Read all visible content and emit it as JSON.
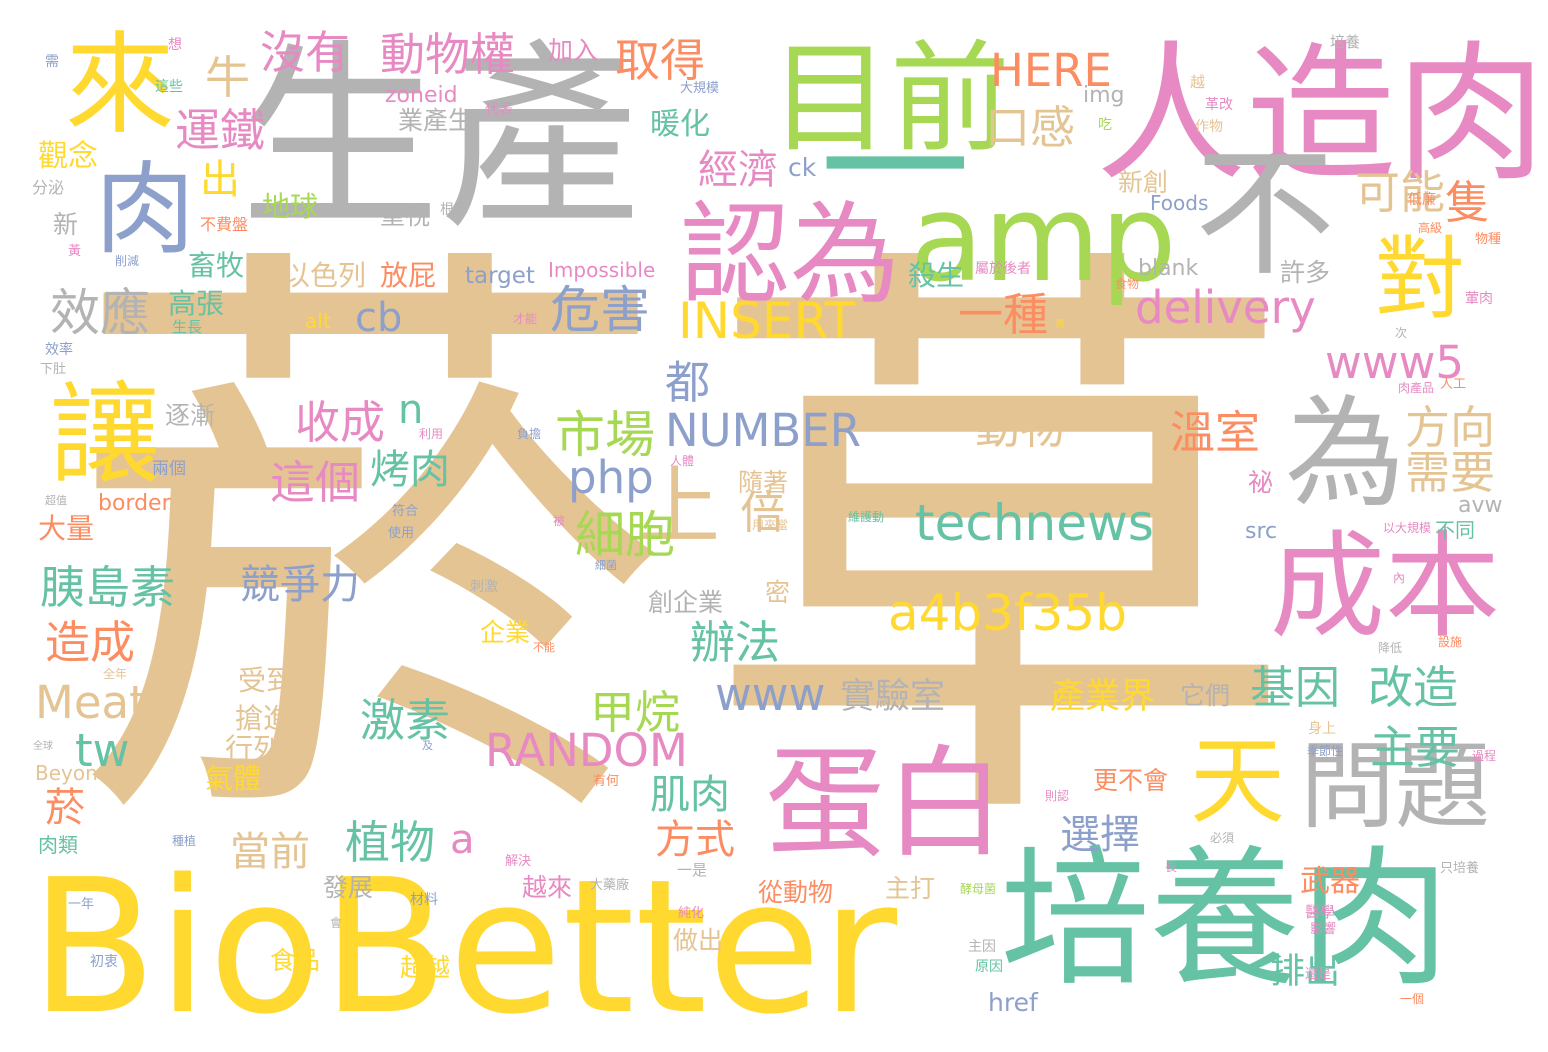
{
  "words": [
    {
      "text": "菸",
      "color": "#e5c494"
    },
    {
      "text": "草",
      "color": "#e5c494"
    },
    {
      "text": "生產",
      "color": "#b3b3b3"
    },
    {
      "text": "人造肉",
      "color": "#e78ac3"
    },
    {
      "text": "BioBetter",
      "color": "#ffd92f"
    },
    {
      "text": "培養肉",
      "color": "#66c2a5"
    },
    {
      "text": "一",
      "color": "#66c2a5"
    },
    {
      "text": "目前",
      "color": "#a6d854"
    },
    {
      "text": "amp",
      "color": "#a6d854"
    },
    {
      "text": "認為",
      "color": "#e78ac3"
    },
    {
      "text": "來",
      "color": "#ffd92f"
    },
    {
      "text": "肉",
      "color": "#8da0cb"
    },
    {
      "text": "不",
      "color": "#b3b3b3"
    },
    {
      "text": "為",
      "color": "#b3b3b3"
    },
    {
      "text": "成本",
      "color": "#e78ac3"
    },
    {
      "text": "蛋白",
      "color": "#e78ac3"
    },
    {
      "text": "讓",
      "color": "#ffd92f"
    },
    {
      "text": "對",
      "color": "#ffd92f"
    },
    {
      "text": "天",
      "color": "#ffd92f"
    },
    {
      "text": "問題",
      "color": "#b3b3b3"
    },
    {
      "text": "上",
      "color": "#e5c494"
    },
    {
      "text": "technews",
      "color": "#66c2a5"
    },
    {
      "text": "a4b3f35b",
      "color": "#ffd92f"
    },
    {
      "text": "delivery",
      "color": "#e78ac3"
    },
    {
      "text": "INSERT",
      "color": "#ffd92f"
    },
    {
      "text": "NUMBER",
      "color": "#8da0cb"
    },
    {
      "text": "RANDOM",
      "color": "#e78ac3"
    },
    {
      "text": "www5",
      "color": "#e78ac3"
    },
    {
      "text": "www",
      "color": "#8da0cb"
    },
    {
      "text": "php",
      "color": "#8da0cb"
    },
    {
      "text": "cb",
      "color": "#8da0cb"
    },
    {
      "text": "HERE",
      "color": "#fc8d62"
    },
    {
      "text": "Meat",
      "color": "#e5c494"
    },
    {
      "text": "tw",
      "color": "#66c2a5"
    },
    {
      "text": "效應",
      "color": "#b3b3b3"
    },
    {
      "text": "危害",
      "color": "#8da0cb"
    },
    {
      "text": "市場",
      "color": "#a6d854"
    },
    {
      "text": "細胞",
      "color": "#a6d854"
    },
    {
      "text": "倍",
      "color": "#e5c494"
    },
    {
      "text": "動物權",
      "color": "#e78ac3"
    },
    {
      "text": "沒有",
      "color": "#e78ac3"
    },
    {
      "text": "取得",
      "color": "#fc8d62"
    },
    {
      "text": "運鐵",
      "color": "#e78ac3"
    },
    {
      "text": "出",
      "color": "#ffd92f"
    },
    {
      "text": "牛",
      "color": "#e5c494"
    },
    {
      "text": "口感",
      "color": "#e5c494"
    },
    {
      "text": "可能",
      "color": "#e5c494"
    },
    {
      "text": "隻",
      "color": "#fc8d62"
    },
    {
      "text": "經濟",
      "color": "#e78ac3"
    },
    {
      "text": "暖化",
      "color": "#66c2a5"
    },
    {
      "text": "一種",
      "color": "#fc8d62"
    },
    {
      "text": "動物",
      "color": "#e5c494"
    },
    {
      "text": "溫室",
      "color": "#fc8d62"
    },
    {
      "text": "方向",
      "color": "#e5c494"
    },
    {
      "text": "需要",
      "color": "#e5c494"
    },
    {
      "text": "收成",
      "color": "#e78ac3"
    },
    {
      "text": "這個",
      "color": "#e78ac3"
    },
    {
      "text": "烤肉",
      "color": "#66c2a5"
    },
    {
      "text": "都",
      "color": "#8da0cb"
    },
    {
      "text": "n",
      "color": "#66c2a5"
    },
    {
      "text": "胰島素",
      "color": "#66c2a5"
    },
    {
      "text": "競爭力",
      "color": "#8da0cb"
    },
    {
      "text": "造成",
      "color": "#fc8d62"
    },
    {
      "text": "辦法",
      "color": "#66c2a5"
    },
    {
      "text": "激素",
      "color": "#66c2a5"
    },
    {
      "text": "甲烷",
      "color": "#a6d854"
    },
    {
      "text": "基因",
      "color": "#66c2a5"
    },
    {
      "text": "改造",
      "color": "#66c2a5"
    },
    {
      "text": "主要",
      "color": "#66c2a5"
    },
    {
      "text": "產業界",
      "color": "#ffd92f"
    },
    {
      "text": "實驗室",
      "color": "#b3b3b3"
    },
    {
      "text": "肌肉",
      "color": "#66c2a5"
    },
    {
      "text": "植物",
      "color": "#66c2a5"
    },
    {
      "text": "選擇",
      "color": "#8da0cb"
    },
    {
      "text": "方式",
      "color": "#fc8d62"
    },
    {
      "text": "當前",
      "color": "#e5c494"
    },
    {
      "text": "a",
      "color": "#e78ac3"
    },
    {
      "text": "菸",
      "color": "#fc8d62"
    },
    {
      "text": "排出",
      "color": "#66c2a5"
    },
    {
      "text": "武器",
      "color": "#fc8d62"
    },
    {
      "text": "觀念",
      "color": "#ffd92f"
    },
    {
      "text": "畜牧",
      "color": "#66c2a5"
    },
    {
      "text": "高張",
      "color": "#66c2a5"
    },
    {
      "text": "地球",
      "color": "#a6d854"
    },
    {
      "text": "重視",
      "color": "#b3b3b3"
    },
    {
      "text": "以色列",
      "color": "#e5c494"
    },
    {
      "text": "放屁",
      "color": "#fc8d62"
    },
    {
      "text": "殺生",
      "color": "#66c2a5"
    },
    {
      "text": "業產生",
      "color": "#b3b3b3"
    },
    {
      "text": "新創",
      "color": "#e5c494"
    },
    {
      "text": "許多",
      "color": "#b3b3b3"
    },
    {
      "text": "逐漸",
      "color": "#b3b3b3"
    },
    {
      "text": "大量",
      "color": "#fc8d62"
    },
    {
      "text": "創企業",
      "color": "#b3b3b3"
    },
    {
      "text": "企業",
      "color": "#ffd92f"
    },
    {
      "text": "受到",
      "color": "#e5c494"
    },
    {
      "text": "搶進",
      "color": "#e5c494"
    },
    {
      "text": "行列",
      "color": "#e5c494"
    },
    {
      "text": "氣體",
      "color": "#ffd92f"
    },
    {
      "text": "隨著",
      "color": "#e5c494"
    },
    {
      "text": "密",
      "color": "#e5c494"
    },
    {
      "text": "更不會",
      "color": "#fc8d62"
    },
    {
      "text": "它們",
      "color": "#b3b3b3"
    },
    {
      "text": "越來",
      "color": "#e78ac3"
    },
    {
      "text": "發展",
      "color": "#b3b3b3"
    },
    {
      "text": "主打",
      "color": "#e5c494"
    },
    {
      "text": "從動物",
      "color": "#fc8d62"
    },
    {
      "text": "超越",
      "color": "#ffd92f"
    },
    {
      "text": "食品",
      "color": "#ffd92f"
    },
    {
      "text": "做出",
      "color": "#e5c494"
    },
    {
      "text": "新",
      "color": "#b3b3b3"
    },
    {
      "text": "加入",
      "color": "#e78ac3"
    },
    {
      "text": "zoneid",
      "color": "#e78ac3"
    },
    {
      "text": "img",
      "color": "#b3b3b3"
    },
    {
      "text": "ck",
      "color": "#8da0cb"
    },
    {
      "text": "Foods",
      "color": "#8da0cb"
    },
    {
      "text": "target",
      "color": "#8da0cb"
    },
    {
      "text": "Impossible",
      "color": "#e78ac3"
    },
    {
      "text": "blank",
      "color": "#b3b3b3"
    },
    {
      "text": "alt",
      "color": "#ffd92f"
    },
    {
      "text": "border",
      "color": "#fc8d62"
    },
    {
      "text": "avw",
      "color": "#b3b3b3"
    },
    {
      "text": "src",
      "color": "#8da0cb"
    },
    {
      "text": "href",
      "color": "#8da0cb"
    },
    {
      "text": "Beyond",
      "color": "#e5c494"
    },
    {
      "text": "不同",
      "color": "#66c2a5"
    },
    {
      "text": "祕",
      "color": "#e78ac3"
    },
    {
      "text": "培養",
      "color": "#b3b3b3"
    },
    {
      "text": "想",
      "color": "#e78ac3"
    },
    {
      "text": "需",
      "color": "#8da0cb"
    },
    {
      "text": "這些",
      "color": "#66c2a5"
    },
    {
      "text": "分泌",
      "color": "#b3b3b3"
    },
    {
      "text": "大規模",
      "color": "#8da0cb"
    },
    {
      "text": "代表",
      "color": "#e78ac3"
    },
    {
      "text": "越",
      "color": "#e5c494"
    },
    {
      "text": "革改",
      "color": "#e78ac3"
    },
    {
      "text": "作物",
      "color": "#e5c494"
    },
    {
      "text": "吃",
      "color": "#a6d854"
    },
    {
      "text": "根本",
      "color": "#b3b3b3"
    },
    {
      "text": "不費盤",
      "color": "#fc8d62"
    },
    {
      "text": "黃",
      "color": "#e78ac3"
    },
    {
      "text": "削減",
      "color": "#8da0cb"
    },
    {
      "text": "低廉",
      "color": "#fc8d62"
    },
    {
      "text": "高級",
      "color": "#fc8d62"
    },
    {
      "text": "物種",
      "color": "#fc8d62"
    },
    {
      "text": "屬於後者",
      "color": "#e78ac3"
    },
    {
      "text": "食物",
      "color": "#fc8d62"
    },
    {
      "text": "葷肉",
      "color": "#e78ac3"
    },
    {
      "text": "生長",
      "color": "#66c2a5"
    },
    {
      "text": "才能",
      "color": "#e78ac3"
    },
    {
      "text": "貴",
      "color": "#ffd92f"
    },
    {
      "text": "次",
      "color": "#b3b3b3"
    },
    {
      "text": "效率",
      "color": "#8da0cb"
    },
    {
      "text": "下肚",
      "color": "#b3b3b3"
    },
    {
      "text": "肉產品",
      "color": "#e78ac3"
    },
    {
      "text": "人工",
      "color": "#fc8d62"
    },
    {
      "text": "利用",
      "color": "#e78ac3"
    },
    {
      "text": "負擔",
      "color": "#8da0cb"
    },
    {
      "text": "雞的",
      "color": "#e5c494"
    },
    {
      "text": "人體",
      "color": "#e78ac3"
    },
    {
      "text": "兩個",
      "color": "#8da0cb"
    },
    {
      "text": "維護動",
      "color": "#66c2a5"
    },
    {
      "text": "以大規模",
      "color": "#e78ac3"
    },
    {
      "text": "超值",
      "color": "#b3b3b3"
    },
    {
      "text": "符合",
      "color": "#8da0cb"
    },
    {
      "text": "使用",
      "color": "#8da0cb"
    },
    {
      "text": "被",
      "color": "#e78ac3"
    },
    {
      "text": "用來當",
      "color": "#e5c494"
    },
    {
      "text": "細菌",
      "color": "#8da0cb"
    },
    {
      "text": "刺激",
      "color": "#b3b3b3"
    },
    {
      "text": "內",
      "color": "#e78ac3"
    },
    {
      "text": "降低",
      "color": "#b3b3b3"
    },
    {
      "text": "設施",
      "color": "#fc8d62"
    },
    {
      "text": "不能",
      "color": "#fc8d62"
    },
    {
      "text": "全年",
      "color": "#e5c494"
    },
    {
      "text": "身上",
      "color": "#e5c494"
    },
    {
      "text": "季節性",
      "color": "#8da0cb"
    },
    {
      "text": "過程",
      "color": "#e78ac3"
    },
    {
      "text": "全球",
      "color": "#b3b3b3"
    },
    {
      "text": "及",
      "color": "#8da0cb"
    },
    {
      "text": "有何",
      "color": "#fc8d62"
    },
    {
      "text": "則認",
      "color": "#e78ac3"
    },
    {
      "text": "肉類",
      "color": "#66c2a5"
    },
    {
      "text": "種植",
      "color": "#8da0cb"
    },
    {
      "text": "解決",
      "color": "#e78ac3"
    },
    {
      "text": "大藥廠",
      "color": "#b3b3b3"
    },
    {
      "text": "一是",
      "color": "#b3b3b3"
    },
    {
      "text": "酵母菌",
      "color": "#a6d854"
    },
    {
      "text": "必須",
      "color": "#b3b3b3"
    },
    {
      "text": "長",
      "color": "#e78ac3"
    },
    {
      "text": "只培養",
      "color": "#b3b3b3"
    },
    {
      "text": "一年",
      "color": "#8da0cb"
    },
    {
      "text": "會",
      "color": "#b3b3b3"
    },
    {
      "text": "材料",
      "color": "#8da0cb"
    },
    {
      "text": "純化",
      "color": "#e78ac3"
    },
    {
      "text": "主因",
      "color": "#b3b3b3"
    },
    {
      "text": "醫學",
      "color": "#e78ac3"
    },
    {
      "text": "影響",
      "color": "#e78ac3"
    },
    {
      "text": "初衷",
      "color": "#8da0cb"
    },
    {
      "text": "原因",
      "color": "#66c2a5"
    },
    {
      "text": "還是",
      "color": "#e78ac3"
    },
    {
      "text": "一個",
      "color": "#fc8d62"
    }
  ]
}
